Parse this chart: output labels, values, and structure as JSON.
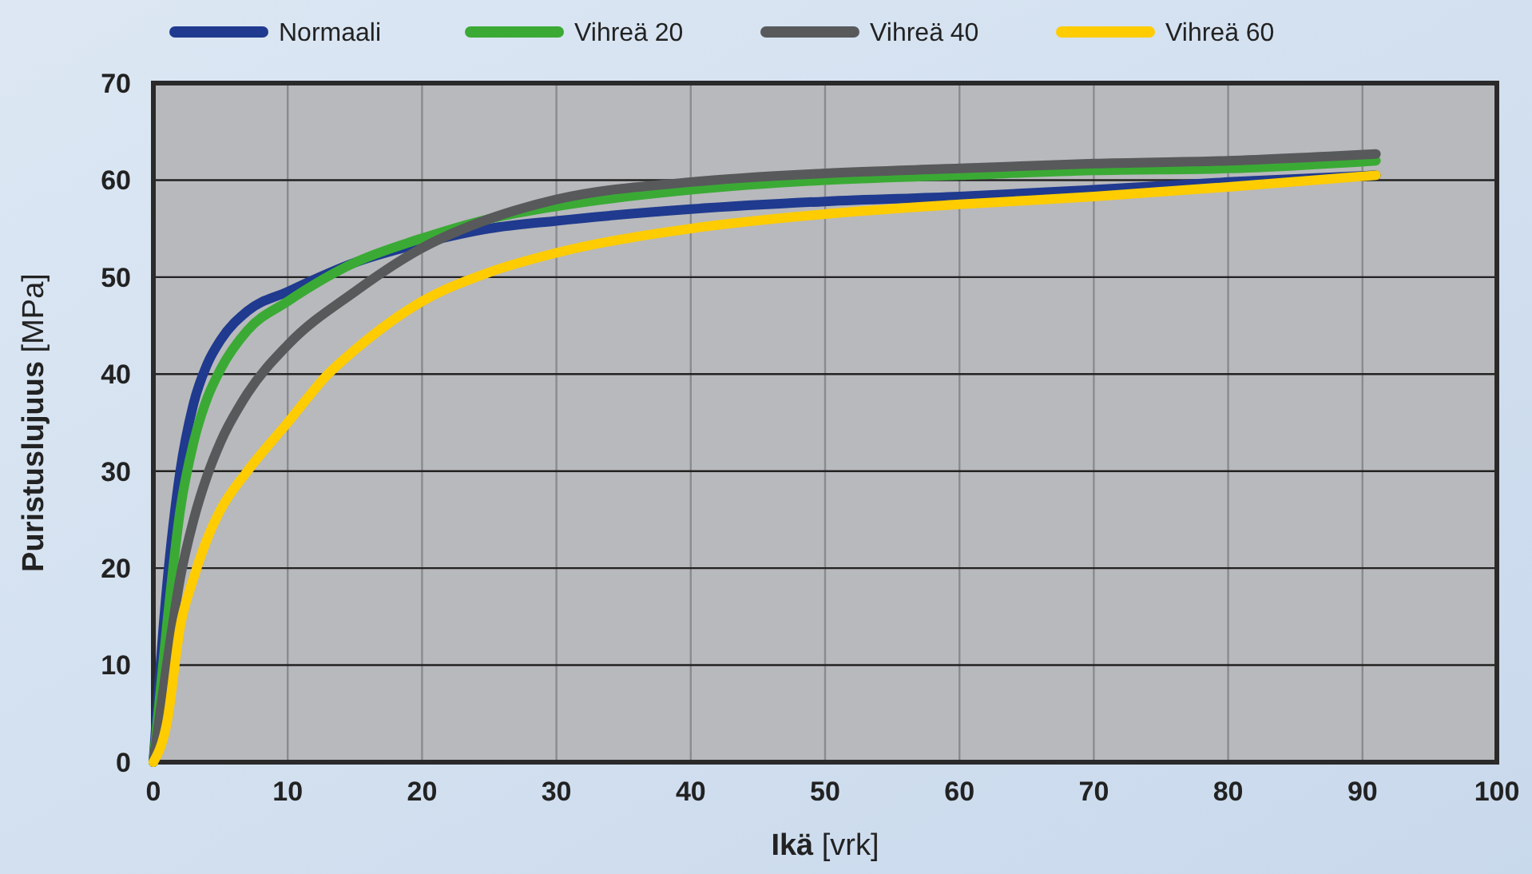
{
  "chart_data": {
    "type": "line",
    "xlabel": "Ikä [vrk]",
    "ylabel": "Puristuslujuus [MPa]",
    "xlim": [
      0,
      100
    ],
    "xticks": [
      0,
      10,
      20,
      30,
      40,
      50,
      60,
      70,
      80,
      90,
      100
    ],
    "ylim": [
      0,
      70
    ],
    "yticks": [
      0,
      10,
      20,
      30,
      40,
      50,
      60,
      70
    ],
    "grid": true,
    "legend": "top",
    "marker": "none",
    "line_style": "solid",
    "x": [
      0,
      1,
      2,
      3,
      4,
      5,
      7,
      10,
      15,
      20,
      25,
      30,
      40,
      50,
      60,
      70,
      80,
      91
    ],
    "series": [
      {
        "name": "Normaali",
        "color": "#1f3a8f",
        "values": [
          0,
          18,
          30,
          37,
          41,
          43.5,
          46.5,
          48.5,
          51.5,
          53.5,
          55,
          55.8,
          57,
          57.8,
          58.3,
          59,
          59.8,
          60.5
        ]
      },
      {
        "name": "Vihreä 20",
        "color": "#3aaa35",
        "values": [
          0,
          14,
          26,
          33,
          37.5,
          40.5,
          44.5,
          47.5,
          51.5,
          54,
          56,
          57.3,
          59,
          60,
          60.5,
          61,
          61.2,
          62
        ]
      },
      {
        "name": "Vihreä 40",
        "color": "#58595b",
        "values": [
          0,
          10,
          19,
          25,
          29.5,
          33,
          38,
          43,
          48.5,
          53,
          56,
          58,
          59.8,
          60.7,
          61.2,
          61.7,
          62,
          62.7
        ]
      },
      {
        "name": "Vihreä 60",
        "color": "#ffcc00",
        "x": [
          0,
          1,
          2,
          3,
          4,
          5,
          7,
          10,
          13,
          15,
          20,
          25,
          30,
          40,
          50,
          60,
          70,
          80,
          91
        ],
        "values": [
          0,
          4,
          14,
          19,
          23,
          26,
          30,
          35,
          40,
          42.5,
          47.5,
          50.5,
          52.5,
          55,
          56.5,
          57.5,
          58.3,
          59.3,
          60.5
        ]
      }
    ]
  }
}
